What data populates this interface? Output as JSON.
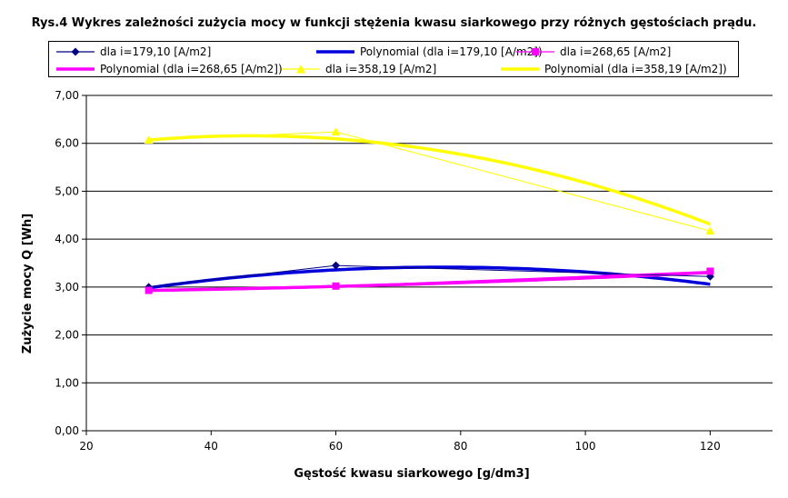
{
  "chart_data": {
    "type": "line",
    "title": "Rys.4 Wykres zależności zużycia mocy w funkcji stężenia kwasu siarkowego przy różnych gęstościach prądu.",
    "xlabel": "Gęstość kwasu siarkowego [g/dm3]",
    "ylabel": "Zużycie mocy Q [Wh]",
    "xlim": [
      20,
      130
    ],
    "ylim": [
      0,
      7
    ],
    "x_ticks": [
      20,
      40,
      60,
      80,
      100,
      120
    ],
    "x_tick_labels": [
      "20",
      "40",
      "60",
      "80",
      "100",
      "120"
    ],
    "y_ticks": [
      0,
      1,
      2,
      3,
      4,
      5,
      6,
      7
    ],
    "y_tick_labels": [
      "0,00",
      "1,00",
      "2,00",
      "3,00",
      "4,00",
      "5,00",
      "6,00",
      "7,00"
    ],
    "grid": "horizontal",
    "legend_position": "top",
    "series": [
      {
        "name": "dla i=179,10 [A/m2]",
        "color": "#000080",
        "marker": "diamond",
        "x": [
          30,
          60,
          120
        ],
        "y": [
          3.0,
          3.45,
          3.22
        ],
        "trend": {
          "name": "Polynomial (dla i=179,10 [A/m2])",
          "color": "#0000dd",
          "coeffs": [
            2.258,
            0.03,
            -0.0001944
          ]
        }
      },
      {
        "name": "dla i=268,65 [A/m2]",
        "color": "#ff00ff",
        "marker": "square",
        "x": [
          30,
          60,
          120
        ],
        "y": [
          2.93,
          3.02,
          3.33
        ],
        "trend": {
          "name": "Polynomial (dla i=268,65 [A/m2])",
          "color": "#ff00ff",
          "coeffs": [
            2.8833,
            0.000833,
            2.222e-05
          ]
        }
      },
      {
        "name": "dla i=358,19 [A/m2]",
        "color": "#ffff00",
        "marker": "triangle",
        "x": [
          30,
          60,
          120
        ],
        "y": [
          6.07,
          6.24,
          4.17
        ],
        "trend": {
          "name": "Polynomial (dla i=358,19 [A/m2])",
          "color": "#ffff00",
          "coeffs": [
            5.4333,
            0.03133,
            -0.0003389
          ]
        }
      }
    ]
  }
}
